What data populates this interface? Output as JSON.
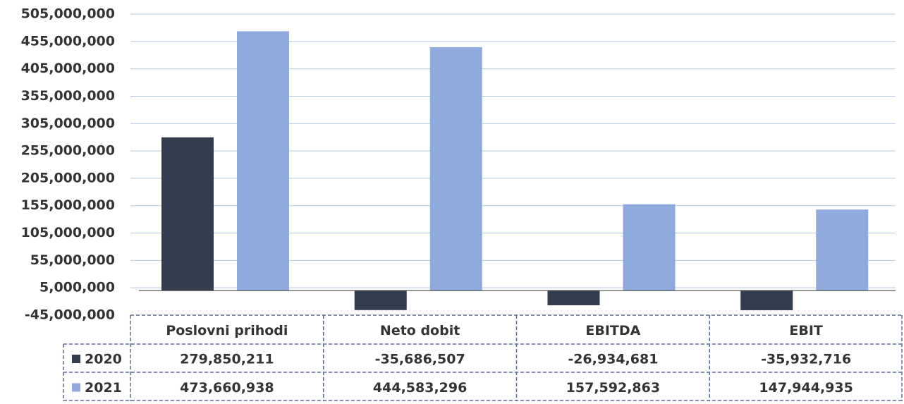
{
  "chart_data": {
    "type": "bar",
    "categories": [
      "Poslovni prihodi",
      "Neto dobit",
      "EBITDA",
      "EBIT"
    ],
    "series": [
      {
        "name": "2020",
        "color": "#333d50",
        "values": [
          279850211,
          -35686507,
          -26934681,
          -35932716
        ],
        "value_labels": [
          "279,850,211",
          "-35,686,507",
          "-26,934,681",
          "-35,932,716"
        ]
      },
      {
        "name": "2021",
        "color": "#8faadc",
        "values": [
          473660938,
          444583296,
          157592863,
          147944935
        ],
        "value_labels": [
          "473,660,938",
          "444,583,296",
          "157,592,863",
          "147,944,935"
        ]
      }
    ],
    "ylim": [
      -45000000,
      505000000
    ],
    "yticks": [
      {
        "value": -45000000,
        "label": "-45,000,000"
      },
      {
        "value": 5000000,
        "label": "5,000,000"
      },
      {
        "value": 55000000,
        "label": "55,000,000"
      },
      {
        "value": 105000000,
        "label": "105,000,000"
      },
      {
        "value": 155000000,
        "label": "155,000,000"
      },
      {
        "value": 205000000,
        "label": "205,000,000"
      },
      {
        "value": 255000000,
        "label": "255,000,000"
      },
      {
        "value": 305000000,
        "label": "305,000,000"
      },
      {
        "value": 355000000,
        "label": "355,000,000"
      },
      {
        "value": 405000000,
        "label": "405,000,000"
      },
      {
        "value": 455000000,
        "label": "455,000,000"
      },
      {
        "value": 505000000,
        "label": "505,000,000"
      }
    ],
    "grid": true
  }
}
